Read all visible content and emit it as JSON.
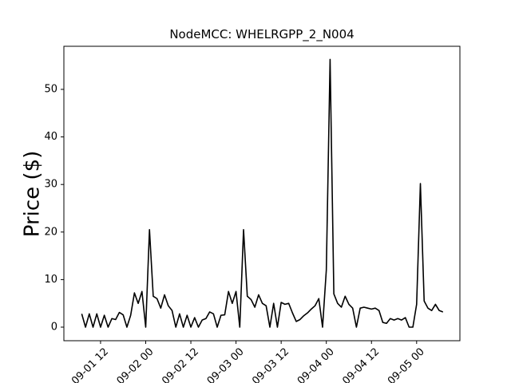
{
  "chart_data": {
    "type": "line",
    "title": "NodeMCC: WHELRGPP_2_N004",
    "y_label": "Price ($)",
    "color": "#000000",
    "x": [
      "09-01 07",
      "09-01 08",
      "09-01 09",
      "09-01 10",
      "09-01 11",
      "09-01 12",
      "09-01 13",
      "09-01 14",
      "09-01 15",
      "09-01 16",
      "09-01 17",
      "09-01 18",
      "09-01 19",
      "09-01 20",
      "09-01 21",
      "09-01 22",
      "09-01 23",
      "09-02 00",
      "09-02 01",
      "09-02 02",
      "09-02 03",
      "09-02 04",
      "09-02 05",
      "09-02 06",
      "09-02 07",
      "09-02 08",
      "09-02 09",
      "09-02 10",
      "09-02 11",
      "09-02 12",
      "09-02 13",
      "09-02 14",
      "09-02 15",
      "09-02 16",
      "09-02 17",
      "09-02 18",
      "09-02 19",
      "09-02 20",
      "09-02 21",
      "09-02 22",
      "09-02 23",
      "09-03 00",
      "09-03 01",
      "09-03 02",
      "09-03 03",
      "09-03 04",
      "09-03 05",
      "09-03 06",
      "09-03 07",
      "09-03 08",
      "09-03 09",
      "09-03 10",
      "09-03 11",
      "09-03 12",
      "09-03 13",
      "09-03 14",
      "09-03 15",
      "09-03 16",
      "09-03 17",
      "09-03 18",
      "09-03 19",
      "09-03 20",
      "09-03 21",
      "09-03 22",
      "09-03 23",
      "09-04 00",
      "09-04 01",
      "09-04 02",
      "09-04 03",
      "09-04 04",
      "09-04 05",
      "09-04 06",
      "09-04 07",
      "09-04 08",
      "09-04 09",
      "09-04 10",
      "09-04 11",
      "09-04 12",
      "09-04 13",
      "09-04 14",
      "09-04 15",
      "09-04 16",
      "09-04 17",
      "09-04 18",
      "09-04 19",
      "09-04 20",
      "09-04 21",
      "09-04 22",
      "09-04 23",
      "09-05 00",
      "09-05 01",
      "09-05 02",
      "09-05 03",
      "09-05 04",
      "09-05 05",
      "09-05 06",
      "09-05 07"
    ],
    "values": [
      2.8,
      0,
      2.8,
      0,
      2.8,
      0,
      2.5,
      0,
      1.8,
      1.6,
      3.1,
      2.6,
      0,
      2.5,
      7.2,
      5,
      7.5,
      0,
      20.5,
      6.5,
      6,
      4,
      6.8,
      4.5,
      3.5,
      0,
      2.8,
      0,
      2.5,
      0,
      2,
      0,
      1.5,
      1.8,
      3.2,
      2.8,
      0,
      2.5,
      2.6,
      7.5,
      5,
      7.5,
      0,
      20.5,
      6.5,
      5.8,
      4.2,
      6.8,
      5,
      4.5,
      0,
      5,
      0,
      5.2,
      4.8,
      5,
      3,
      1.2,
      1.6,
      2.4,
      3,
      3.8,
      4.5,
      6,
      0,
      12,
      56.3,
      7,
      5,
      4.2,
      6.5,
      4.8,
      4,
      0,
      4,
      4.2,
      4,
      3.8,
      4,
      3.5,
      1,
      0.8,
      1.8,
      1.5,
      1.8,
      1.5,
      2,
      0,
      0,
      4.8,
      30.2,
      5.5,
      4,
      3.5,
      4.8,
      3.5,
      3.2
    ],
    "xlim": [
      "09-01 02:15",
      "09-05 11:30"
    ],
    "xticks": [
      "09-01 12",
      "09-02 00",
      "09-02 12",
      "09-03 00",
      "09-03 12",
      "09-04 00",
      "09-04 12",
      "09-05 00"
    ],
    "ylim": [
      -2.85,
      59.06
    ],
    "yticks": [
      0,
      10,
      20,
      30,
      40,
      50
    ]
  }
}
